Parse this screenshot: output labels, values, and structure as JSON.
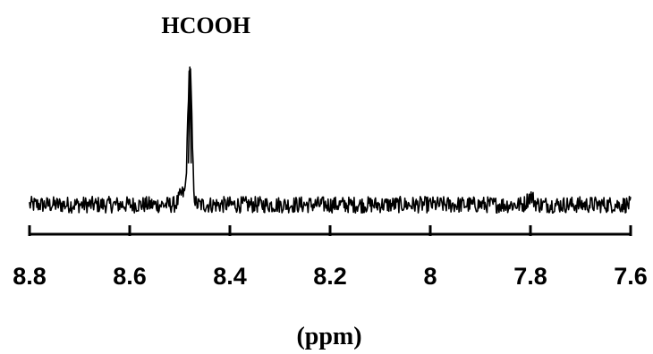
{
  "chart_data": {
    "type": "line",
    "xlabel": "(ppm)",
    "xlim": [
      8.8,
      7.6
    ],
    "x_reversed": true,
    "x_ticks": [
      8.8,
      8.6,
      8.4,
      8.2,
      8,
      7.8,
      7.6
    ],
    "x_tick_labels": [
      "8.8",
      "8.6",
      "8.4",
      "8.2",
      "8",
      "7.8",
      "7.6"
    ],
    "yaxis_visible": false,
    "grid": false,
    "series": [
      {
        "baseline_intensity": 0.0,
        "noise_amplitude": 0.06,
        "peaks": [
          {
            "x": 8.48,
            "height": 1.0,
            "width_ppm": 0.004
          }
        ],
        "minor_features": [
          {
            "x": 8.495,
            "height": 0.08
          },
          {
            "x": 7.8,
            "height": 0.06
          }
        ]
      }
    ],
    "annotations": [
      {
        "text": "HCOOH",
        "x": 8.48
      }
    ]
  }
}
